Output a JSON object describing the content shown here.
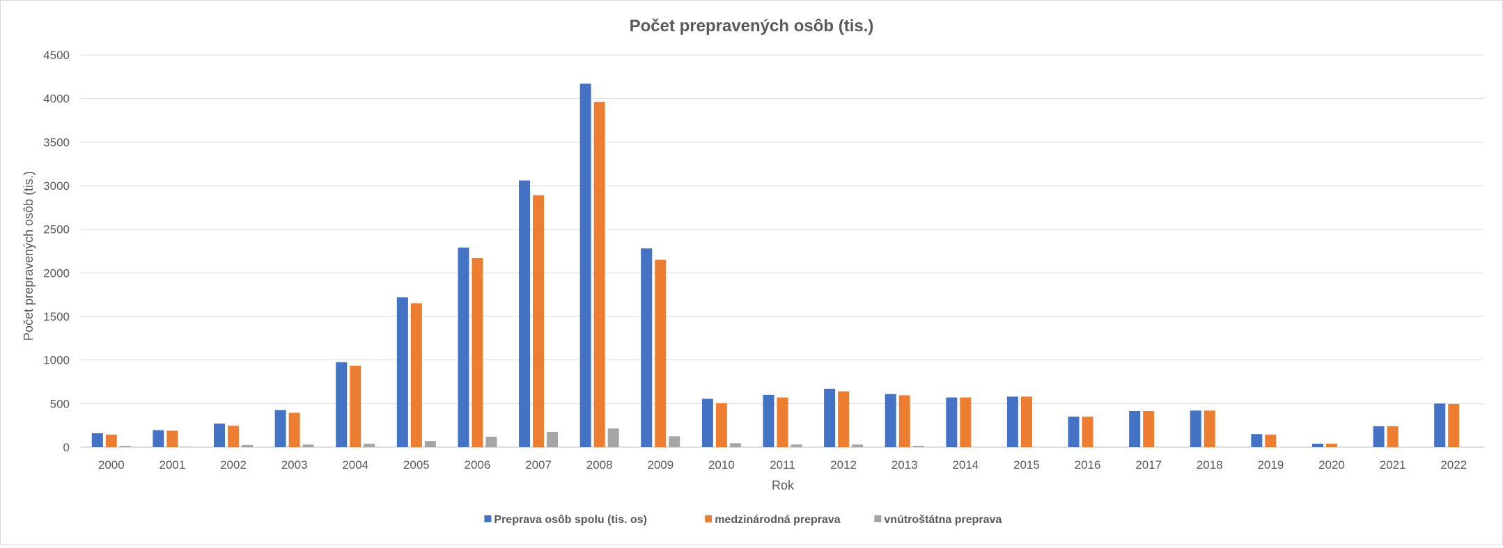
{
  "chart_data": {
    "type": "bar",
    "title": "Počet prepravených osôb (tis.)",
    "xlabel": "Rok",
    "ylabel": "Počet prepravených osôb (tis.)",
    "ylim": [
      0,
      4500
    ],
    "yticks": [
      0,
      500,
      1000,
      1500,
      2000,
      2500,
      3000,
      3500,
      4000,
      4500
    ],
    "grid": true,
    "legend_position": "bottom",
    "categories": [
      "2000",
      "2001",
      "2002",
      "2003",
      "2004",
      "2005",
      "2006",
      "2007",
      "2008",
      "2009",
      "2010",
      "2011",
      "2012",
      "2013",
      "2014",
      "2015",
      "2016",
      "2017",
      "2018",
      "2019",
      "2020",
      "2021",
      "2022"
    ],
    "series": [
      {
        "name": "Preprava osôb spolu (tis. os)",
        "color": "#4472c4",
        "values": [
          160,
          195,
          270,
          425,
          975,
          1720,
          2290,
          3060,
          4170,
          2280,
          555,
          600,
          670,
          610,
          570,
          580,
          350,
          415,
          420,
          150,
          40,
          240,
          500
        ]
      },
      {
        "name": "medzinárodná preprava",
        "color": "#ed7d31",
        "values": [
          145,
          190,
          245,
          395,
          935,
          1650,
          2170,
          2890,
          3960,
          2150,
          505,
          570,
          640,
          595,
          570,
          580,
          350,
          415,
          420,
          145,
          40,
          240,
          495
        ]
      },
      {
        "name": "vnútroštátna preprava",
        "color": "#a5a5a5",
        "values": [
          15,
          5,
          25,
          30,
          40,
          70,
          120,
          175,
          215,
          125,
          45,
          30,
          30,
          15,
          0,
          0,
          0,
          0,
          0,
          0,
          0,
          0,
          0
        ]
      }
    ]
  }
}
